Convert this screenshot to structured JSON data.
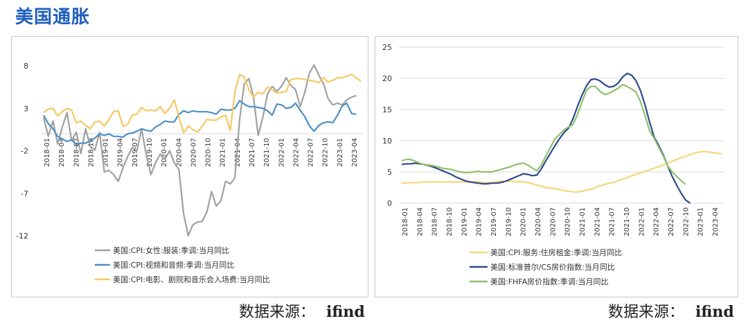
{
  "page": {
    "title": "美国通胀",
    "source_label": "数据来源：",
    "source_value": "ifind"
  },
  "chart_data": [
    {
      "type": "line",
      "yticks": [
        8,
        3,
        -2,
        -7,
        -12
      ],
      "ylim": [
        -12,
        8
      ],
      "x_tick_labels": [
        "2018-01",
        "2018-04",
        "2018-07",
        "2018-10",
        "2019-01",
        "2019-04",
        "2019-07",
        "2019-10",
        "2020-01",
        "2020-04",
        "2020-07",
        "2020-10",
        "2021-01",
        "2021-04",
        "2021-07",
        "2021-10",
        "2022-01",
        "2022-04",
        "2022-07",
        "2022-10",
        "2023-01",
        "2023-04"
      ],
      "grid": false,
      "legend": "bottom",
      "series": [
        {
          "name": "美国:CPI:女性:服装:季调:当月同比",
          "color": "#a0a0a0",
          "values": [
            1.9,
            -0.3,
            1.5,
            -1.2,
            0.8,
            2.5,
            -0.8,
            0.2,
            -2.3,
            0.6,
            -1.5,
            -1.9,
            0.2,
            -4.5,
            -4.3,
            -4.8,
            -5.6,
            -4.0,
            -2.7,
            -1.6,
            -2.0,
            0.6,
            -2.5,
            -4.8,
            -3.4,
            -2.4,
            -3.0,
            -2.0,
            -3.4,
            -4.2,
            -9.4,
            -12.0,
            -10.7,
            -10.4,
            -10.3,
            -9.2,
            -6.8,
            -8.5,
            -7.9,
            -5.6,
            -5.9,
            -5.2,
            1.6,
            5.9,
            6.5,
            4.3,
            -0.2,
            2.0,
            4.7,
            5.6,
            5.0,
            5.6,
            6.6,
            5.7,
            5.2,
            3.2,
            4.9,
            7.2,
            8.1,
            6.9,
            5.9,
            4.1,
            3.4,
            3.6,
            3.4,
            4.0,
            4.3,
            4.5
          ]
        },
        {
          "name": "美国:CPI:视频和音频:季调:当月同比",
          "color": "#4c8fc7",
          "values": [
            2.2,
            1.2,
            0.6,
            -0.3,
            -0.6,
            -0.9,
            -0.7,
            -1.3,
            -1.1,
            -1.1,
            -0.8,
            -0.5,
            0.0,
            -0.2,
            0.0,
            -0.3,
            -0.3,
            -0.4,
            0.0,
            0.1,
            0.3,
            0.6,
            0.4,
            0.3,
            0.8,
            1.1,
            1.5,
            1.4,
            1.4,
            2.3,
            2.7,
            2.5,
            2.7,
            2.6,
            2.6,
            2.6,
            2.5,
            2.3,
            2.9,
            2.8,
            2.8,
            3.0,
            3.9,
            3.5,
            3.2,
            3.2,
            3.1,
            3.0,
            2.7,
            2.2,
            3.5,
            3.4,
            3.0,
            3.1,
            3.6,
            2.8,
            2.0,
            0.9,
            0.3,
            1.0,
            1.3,
            1.4,
            1.3,
            2.2,
            3.3,
            3.6,
            2.4,
            2.3
          ]
        },
        {
          "name": "美国:CPI:电影、剧院和音乐会入场费:当月同比",
          "color": "#f7c860",
          "values": [
            2.5,
            2.9,
            3.0,
            2.1,
            2.6,
            3.0,
            2.8,
            1.3,
            1.5,
            1.0,
            0.6,
            1.4,
            1.5,
            0.9,
            1.7,
            2.6,
            2.7,
            0.9,
            1.1,
            2.2,
            2.3,
            3.1,
            2.7,
            2.8,
            2.7,
            3.2,
            2.4,
            3.0,
            4.0,
            2.0,
            0.1,
            0.9,
            0.5,
            0.2,
            0.9,
            1.7,
            1.6,
            1.6,
            2.0,
            2.2,
            0.4,
            4.9,
            7.0,
            6.7,
            5.2,
            4.3,
            4.9,
            4.7,
            5.5,
            5.2,
            4.8,
            4.9,
            5.0,
            6.4,
            6.5,
            6.5,
            6.4,
            6.3,
            6.2,
            6.0,
            6.6,
            6.1,
            6.3,
            6.6,
            6.6,
            6.8,
            7.0,
            6.6,
            6.2
          ]
        }
      ]
    },
    {
      "type": "line",
      "yticks": [
        25,
        20,
        15,
        10,
        5,
        0
      ],
      "ylim": [
        0,
        25
      ],
      "x_tick_labels": [
        "2018-01",
        "2018-04",
        "2018-07",
        "2018-10",
        "2019-01",
        "2019-04",
        "2019-07",
        "2019-10",
        "2020-01",
        "2020-04",
        "2020-07",
        "2020-10",
        "2021-01",
        "2021-04",
        "2021-07",
        "2021-10",
        "2022-01",
        "2022-04",
        "2022-07",
        "2022-10",
        "2023-01",
        "2023-04"
      ],
      "grid": true,
      "legend": "bottom",
      "series": [
        {
          "name": "美国:CPI:服务:住房租金:季调:当月同比",
          "color": "#f7d57a",
          "values": [
            3.2,
            3.2,
            3.3,
            3.3,
            3.3,
            3.4,
            3.4,
            3.4,
            3.4,
            3.4,
            3.4,
            3.4,
            3.4,
            3.4,
            3.4,
            3.4,
            3.4,
            3.4,
            3.3,
            3.3,
            3.3,
            3.4,
            3.5,
            3.5,
            3.5,
            3.5,
            3.4,
            3.4,
            3.3,
            3.1,
            2.9,
            2.7,
            2.5,
            2.4,
            2.3,
            2.2,
            2.0,
            1.9,
            1.8,
            1.8,
            1.9,
            2.1,
            2.2,
            2.5,
            2.8,
            3.0,
            3.2,
            3.3,
            3.6,
            3.8,
            4.1,
            4.4,
            4.6,
            4.9,
            5.1,
            5.3,
            5.6,
            5.8,
            6.1,
            6.4,
            6.7,
            7.0,
            7.3,
            7.5,
            7.8,
            8.0,
            8.2,
            8.3,
            8.2,
            8.1,
            8.0,
            7.9
          ]
        },
        {
          "name": "美国:标准普尔/CS房价指数:当月同比",
          "color": "#2c4a8a",
          "values": [
            6.2,
            6.3,
            6.3,
            6.4,
            6.3,
            6.2,
            6.0,
            5.8,
            5.5,
            5.2,
            4.9,
            4.6,
            4.2,
            3.9,
            3.6,
            3.4,
            3.3,
            3.2,
            3.1,
            3.1,
            3.2,
            3.2,
            3.3,
            3.5,
            3.8,
            4.1,
            4.4,
            4.7,
            4.6,
            4.4,
            4.5,
            5.5,
            6.8,
            8.0,
            9.2,
            10.3,
            11.3,
            12.0,
            13.5,
            15.5,
            17.3,
            18.8,
            19.8,
            19.9,
            19.6,
            19.0,
            18.6,
            18.7,
            19.2,
            20.2,
            20.8,
            20.5,
            19.6,
            18.0,
            15.7,
            13.0,
            10.6,
            9.3,
            7.8,
            6.0,
            4.3,
            2.9,
            1.6,
            0.5,
            0.0
          ]
        },
        {
          "name": "美国:FHFA房价指数:季调:当月同比",
          "color": "#8ec06c",
          "values": [
            6.8,
            7.0,
            7.0,
            6.7,
            6.4,
            6.2,
            6.1,
            6.0,
            5.8,
            5.6,
            5.5,
            5.4,
            5.2,
            5.0,
            4.9,
            4.9,
            5.0,
            5.1,
            5.0,
            5.0,
            5.0,
            5.2,
            5.4,
            5.6,
            5.8,
            6.1,
            6.3,
            6.4,
            6.1,
            5.6,
            5.2,
            6.1,
            7.6,
            8.9,
            10.3,
            11.0,
            11.7,
            12.2,
            12.6,
            14.2,
            16.2,
            18.1,
            18.7,
            18.7,
            17.9,
            17.4,
            17.6,
            18.0,
            18.4,
            19.0,
            18.7,
            18.3,
            17.8,
            16.2,
            14.0,
            11.6,
            10.4,
            9.0,
            7.6,
            6.0,
            5.0,
            4.3,
            3.6,
            3.0
          ]
        }
      ]
    }
  ]
}
